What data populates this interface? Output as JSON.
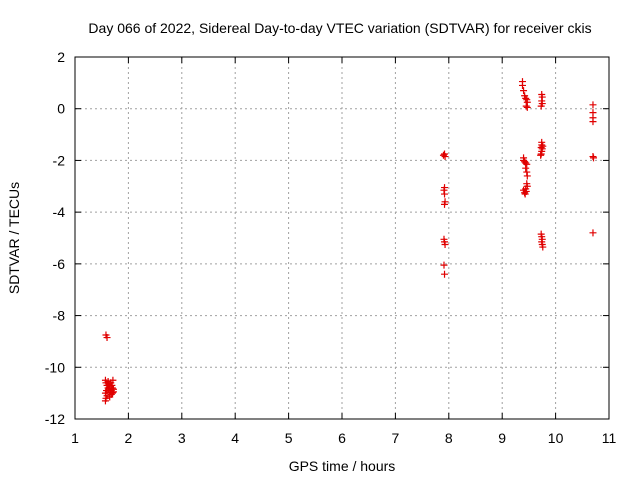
{
  "chart_data": {
    "type": "scatter",
    "title": "Day 066 of 2022, Sidereal Day-to-day VTEC variation (SDTVAR) for receiver ckis",
    "xlabel": "GPS time / hours",
    "ylabel": "SDTVAR / TECUs",
    "xlim": [
      1,
      11
    ],
    "ylim": [
      -12,
      2
    ],
    "xticks": [
      1,
      2,
      3,
      4,
      5,
      6,
      7,
      8,
      9,
      10,
      11
    ],
    "yticks": [
      -12,
      -10,
      -8,
      -6,
      -4,
      -2,
      0,
      2
    ],
    "grid": true,
    "marker": "+",
    "marker_color": "#e00000",
    "series": [
      {
        "name": "SDTVAR",
        "points": [
          [
            1.58,
            -8.75
          ],
          [
            1.6,
            -8.85
          ],
          [
            1.57,
            -10.5
          ],
          [
            1.58,
            -10.6
          ],
          [
            1.6,
            -10.7
          ],
          [
            1.62,
            -10.8
          ],
          [
            1.59,
            -10.9
          ],
          [
            1.57,
            -11.0
          ],
          [
            1.6,
            -11.1
          ],
          [
            1.58,
            -11.2
          ],
          [
            1.57,
            -11.3
          ],
          [
            1.62,
            -10.55
          ],
          [
            1.64,
            -10.65
          ],
          [
            1.65,
            -10.75
          ],
          [
            1.63,
            -10.85
          ],
          [
            1.66,
            -10.95
          ],
          [
            1.68,
            -11.05
          ],
          [
            1.65,
            -11.15
          ],
          [
            1.67,
            -10.6
          ],
          [
            1.69,
            -10.7
          ],
          [
            1.7,
            -10.8
          ],
          [
            1.68,
            -10.9
          ],
          [
            1.7,
            -11.0
          ],
          [
            1.72,
            -10.85
          ],
          [
            1.72,
            -10.95
          ],
          [
            1.71,
            -10.5
          ],
          [
            7.9,
            -1.8
          ],
          [
            7.92,
            -1.75
          ],
          [
            7.93,
            -1.85
          ],
          [
            7.92,
            -3.05
          ],
          [
            7.91,
            -3.15
          ],
          [
            7.92,
            -3.3
          ],
          [
            7.93,
            -3.6
          ],
          [
            7.92,
            -3.7
          ],
          [
            7.91,
            -5.05
          ],
          [
            7.92,
            -5.15
          ],
          [
            7.93,
            -5.25
          ],
          [
            7.91,
            -6.05
          ],
          [
            7.92,
            -6.4
          ],
          [
            9.38,
            1.05
          ],
          [
            9.38,
            0.9
          ],
          [
            9.4,
            0.7
          ],
          [
            9.42,
            0.5
          ],
          [
            9.44,
            0.4
          ],
          [
            9.46,
            0.35
          ],
          [
            9.47,
            0.25
          ],
          [
            9.45,
            0.1
          ],
          [
            9.47,
            0.05
          ],
          [
            9.4,
            -1.9
          ],
          [
            9.4,
            -2.0
          ],
          [
            9.42,
            -2.05
          ],
          [
            9.44,
            -2.1
          ],
          [
            9.46,
            -2.15
          ],
          [
            9.44,
            -2.3
          ],
          [
            9.46,
            -2.45
          ],
          [
            9.47,
            -2.6
          ],
          [
            9.46,
            -2.9
          ],
          [
            9.47,
            -3.0
          ],
          [
            9.44,
            -3.1
          ],
          [
            9.4,
            -3.15
          ],
          [
            9.42,
            -3.25
          ],
          [
            9.45,
            -3.2
          ],
          [
            9.43,
            -3.3
          ],
          [
            9.74,
            0.55
          ],
          [
            9.75,
            0.45
          ],
          [
            9.74,
            0.3
          ],
          [
            9.75,
            0.2
          ],
          [
            9.73,
            0.1
          ],
          [
            9.74,
            -1.3
          ],
          [
            9.74,
            -1.4
          ],
          [
            9.76,
            -1.45
          ],
          [
            9.73,
            -1.5
          ],
          [
            9.75,
            -1.55
          ],
          [
            9.74,
            -1.65
          ],
          [
            9.73,
            -1.75
          ],
          [
            9.72,
            -1.8
          ],
          [
            9.73,
            -4.85
          ],
          [
            9.74,
            -4.95
          ],
          [
            9.75,
            -5.05
          ],
          [
            9.74,
            -5.15
          ],
          [
            9.75,
            -5.25
          ],
          [
            9.76,
            -5.35
          ],
          [
            10.7,
            0.15
          ],
          [
            10.7,
            -0.15
          ],
          [
            10.7,
            -0.35
          ],
          [
            10.7,
            -0.5
          ],
          [
            10.7,
            -1.85
          ],
          [
            10.71,
            -1.9
          ],
          [
            10.7,
            -4.8
          ]
        ]
      }
    ]
  }
}
